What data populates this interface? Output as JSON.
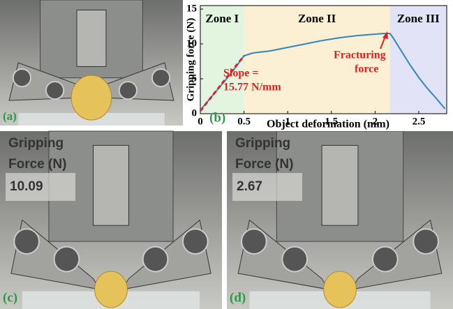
{
  "chart_data": {
    "type": "line",
    "panel_label": "(b)",
    "x_label": "Object deformation (mm)",
    "y_label": "Gripping force (N)",
    "xlim": [
      0,
      2.82
    ],
    "ylim": [
      0,
      15.5
    ],
    "xticks": [
      0,
      0.5,
      1,
      1.5,
      2,
      2.5
    ],
    "yticks": [
      0,
      5,
      10,
      15
    ],
    "zones": [
      {
        "name": "Zone I",
        "start": 0,
        "end": 0.5,
        "color": "#e3f4df"
      },
      {
        "name": "Zone II",
        "start": 0.5,
        "end": 2.17,
        "color": "#fbf0d4"
      },
      {
        "name": "Zone III",
        "start": 2.17,
        "end": 2.82,
        "color": "#e3e3f8"
      }
    ],
    "x": [
      0,
      0.1,
      0.2,
      0.3,
      0.4,
      0.5,
      0.6,
      0.8,
      1.0,
      1.2,
      1.4,
      1.6,
      1.8,
      2.0,
      2.1,
      2.17,
      2.2,
      2.3,
      2.4,
      2.5,
      2.6,
      2.7,
      2.8
    ],
    "series": [
      {
        "color": "#2f86c0",
        "values": [
          0.5,
          2,
          3.5,
          5,
          6.6,
          8.3,
          8.7,
          9.0,
          9.5,
          10,
          10.5,
          10.9,
          11.2,
          11.4,
          11.5,
          11.5,
          11.0,
          9.0,
          7.0,
          5.2,
          3.6,
          2.2,
          0.7
        ]
      }
    ],
    "fit_line": {
      "color": "#e02020",
      "x": [
        0,
        0.5
      ],
      "y": [
        0.4,
        8.3
      ]
    },
    "slope_label": [
      "Slope =",
      "15.77 N/mm"
    ],
    "fracture_label": [
      "Fracturing",
      "force"
    ]
  },
  "panels": [
    {
      "label": "(a)"
    },
    {
      "label": "(c)",
      "readout_title": [
        "Gripping",
        "Force (N)"
      ],
      "readout": "10.09"
    },
    {
      "label": "(d)",
      "readout_title": [
        "Gripping",
        "Force (N)"
      ],
      "readout": "2.67"
    }
  ]
}
